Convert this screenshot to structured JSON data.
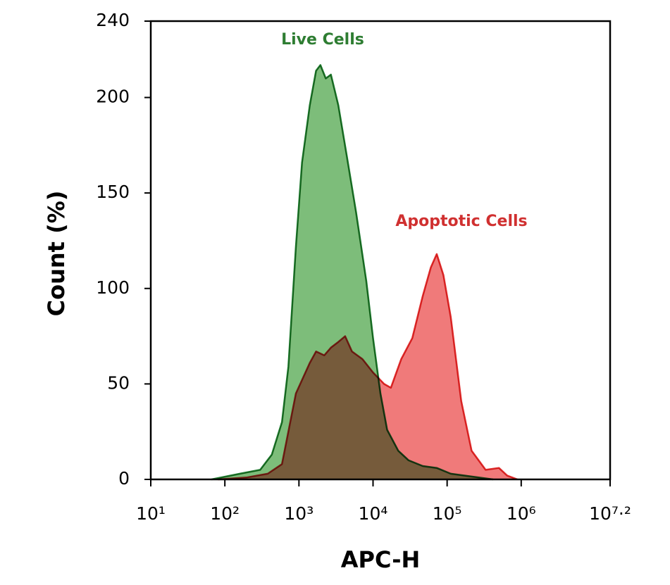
{
  "chart_data": {
    "type": "histogram-overlay",
    "xlabel": "APC-H",
    "ylabel": "Count (%)",
    "xscale": "log",
    "xlim": [
      10,
      15848932
    ],
    "xticks": [
      {
        "value": 10,
        "label": "10¹"
      },
      {
        "value": 100,
        "label": "10²"
      },
      {
        "value": 1000,
        "label": "10³"
      },
      {
        "value": 10000,
        "label": "10⁴"
      },
      {
        "value": 100000,
        "label": "10⁵"
      },
      {
        "value": 1000000,
        "label": "10⁶"
      },
      {
        "value": 15848932,
        "label": "10⁷·²"
      }
    ],
    "ylim": [
      0,
      240
    ],
    "yticks": [
      0,
      50,
      100,
      150,
      200,
      240
    ],
    "series": [
      {
        "name": "Apoptotic Cells",
        "color": "#e03030",
        "fill": "#f07a7a",
        "x": [
          81,
          195,
          380,
          590,
          910,
          1400,
          1700,
          2200,
          2700,
          3400,
          4200,
          5200,
          7200,
          10000,
          14100,
          17400,
          24000,
          33900,
          46800,
          60300,
          72400,
          89100,
          112000,
          155000,
          214000,
          331000,
          501000,
          646000,
          891000
        ],
        "values": [
          0,
          1,
          3,
          8,
          45,
          61,
          67,
          65,
          69,
          72,
          75,
          67,
          63,
          56,
          50,
          48,
          63,
          74,
          96,
          111,
          118,
          107,
          85,
          41,
          15,
          5,
          6,
          2,
          0
        ]
      },
      {
        "name": "Live Cells",
        "color": "#1e7a2e",
        "fill": "#7dbd7a",
        "x": [
          66,
          160,
          300,
          430,
          590,
          720,
          910,
          1100,
          1400,
          1700,
          1950,
          2300,
          2700,
          3400,
          4400,
          5900,
          8100,
          10000,
          12600,
          15500,
          21900,
          30200,
          46800,
          72400,
          112000,
          174000,
          417000
        ],
        "values": [
          0,
          3,
          5,
          13,
          30,
          59,
          122,
          166,
          196,
          214,
          217,
          210,
          212,
          196,
          170,
          140,
          104,
          74,
          45,
          26,
          15,
          10,
          7,
          6,
          3,
          2,
          0
        ]
      }
    ]
  }
}
